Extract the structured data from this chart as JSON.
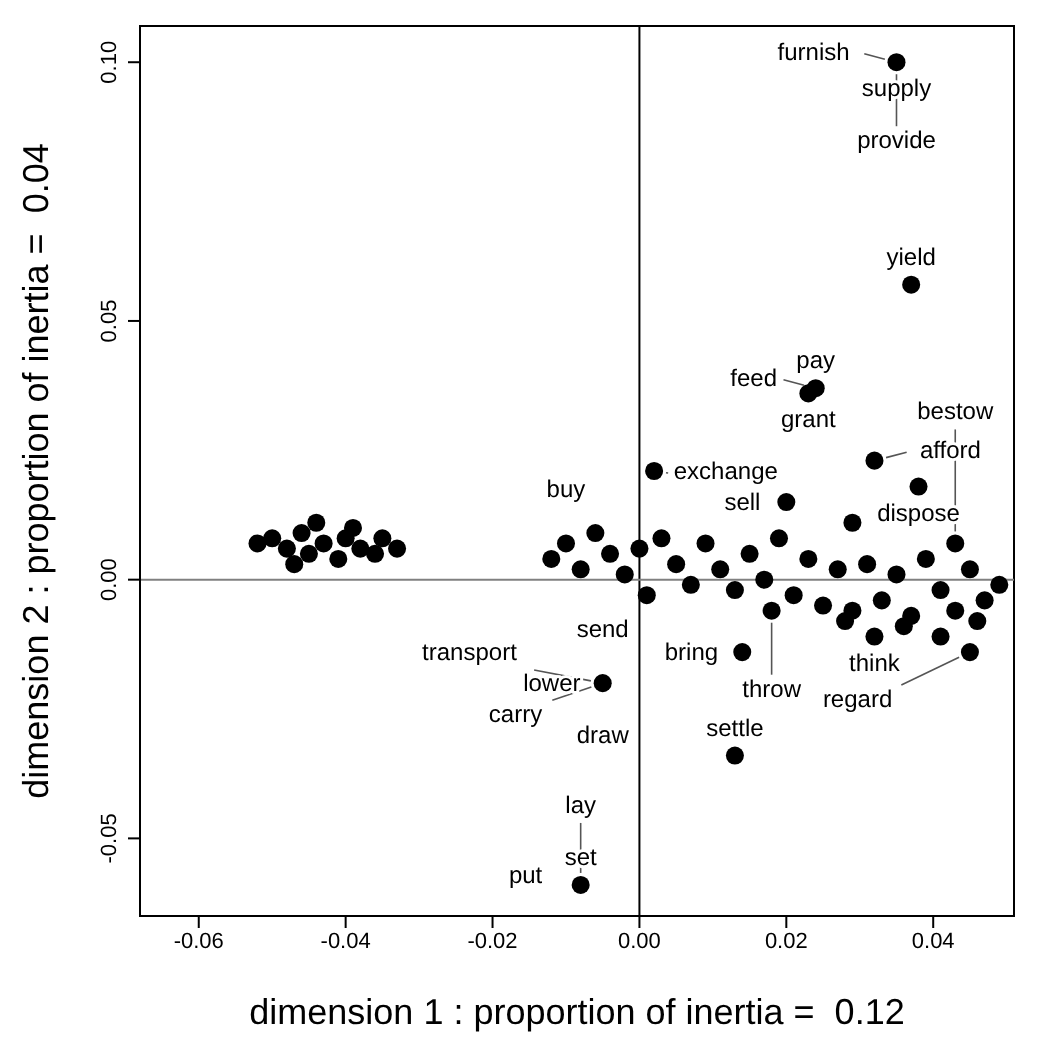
{
  "chart_data": {
    "type": "scatter",
    "xlabel": "dimension 1 : proportion of inertia =  0.12",
    "ylabel": "dimension 2 : proportion of inertia =  0.04",
    "xlim": [
      -0.068,
      0.051
    ],
    "ylim": [
      -0.065,
      0.107
    ],
    "xticks": [
      {
        "value": -0.06,
        "label": "-0.06"
      },
      {
        "value": -0.04,
        "label": "-0.04"
      },
      {
        "value": -0.02,
        "label": "-0.02"
      },
      {
        "value": 0,
        "label": "0.00"
      },
      {
        "value": 0.02,
        "label": "0.02"
      },
      {
        "value": 0.04,
        "label": "0.04"
      }
    ],
    "yticks": [
      {
        "value": -0.05,
        "label": "-0.05"
      },
      {
        "value": 0,
        "label": "0.00"
      },
      {
        "value": 0.05,
        "label": "0.05"
      },
      {
        "value": 0.1,
        "label": "0.10"
      }
    ],
    "grid": false,
    "marker": "circle",
    "ref_lines": [
      {
        "axis": "x",
        "value": 0,
        "color": "#000000"
      },
      {
        "axis": "y",
        "value": 0,
        "color": "#808080"
      }
    ],
    "series": [
      {
        "color": "#000000",
        "x": [
          0.035,
          0.037,
          0.024,
          0.023,
          0.002,
          0.032,
          0.02,
          0.038,
          0.043,
          0.029,
          0.032,
          0.041,
          0.045,
          0.014,
          -0.005,
          0.013,
          -0.008,
          0.018,
          -0.05,
          -0.048,
          -0.046,
          -0.045,
          -0.043,
          -0.041,
          -0.04,
          -0.038,
          -0.036,
          -0.035,
          -0.033,
          -0.044,
          -0.039,
          -0.047,
          -0.052,
          -0.012,
          -0.01,
          -0.008,
          -0.006,
          -0.004,
          -0.002,
          0.0,
          0.001,
          0.003,
          0.005,
          0.007,
          0.009,
          0.011,
          0.013,
          0.015,
          0.017,
          0.019,
          0.021,
          0.023,
          0.025,
          0.027,
          0.029,
          0.031,
          0.033,
          0.035,
          0.037,
          0.039,
          0.041,
          0.043,
          0.045,
          0.047,
          0.049,
          0.028,
          0.036,
          0.046
        ],
        "values": [
          0.1,
          0.057,
          0.037,
          0.036,
          0.021,
          0.023,
          0.015,
          0.018,
          0.007,
          0.011,
          -0.011,
          -0.011,
          -0.014,
          -0.014,
          -0.02,
          -0.034,
          -0.059,
          -0.006,
          0.008,
          0.006,
          0.009,
          0.005,
          0.007,
          0.004,
          0.008,
          0.006,
          0.005,
          0.008,
          0.006,
          0.011,
          0.01,
          0.003,
          0.007,
          0.004,
          0.007,
          0.002,
          0.009,
          0.005,
          0.001,
          0.006,
          -0.003,
          0.008,
          0.003,
          -0.001,
          0.007,
          0.002,
          -0.002,
          0.005,
          0.0,
          0.008,
          -0.003,
          0.004,
          -0.005,
          0.002,
          -0.006,
          0.003,
          -0.004,
          0.001,
          -0.007,
          0.004,
          -0.002,
          -0.006,
          0.002,
          -0.004,
          -0.001,
          -0.008,
          -0.009,
          -0.008
        ]
      }
    ],
    "annotations": [
      {
        "text": "supply",
        "x": 0.035,
        "y": 0.1
      },
      {
        "text": "furnish",
        "x": 0.035,
        "y": 0.1
      },
      {
        "text": "provide",
        "x": 0.035,
        "y": 0.1
      },
      {
        "text": "yield",
        "x": 0.037,
        "y": 0.057
      },
      {
        "text": "pay",
        "x": 0.024,
        "y": 0.037
      },
      {
        "text": "grant",
        "x": 0.023,
        "y": 0.036
      },
      {
        "text": "feed",
        "x": 0.024,
        "y": 0.037
      },
      {
        "text": "exchange",
        "x": 0.002,
        "y": 0.021
      },
      {
        "text": "afford",
        "x": 0.032,
        "y": 0.023
      },
      {
        "text": "sell",
        "x": 0.02,
        "y": 0.015
      },
      {
        "text": "dispose",
        "x": 0.038,
        "y": 0.018
      },
      {
        "text": "bestow",
        "x": 0.043,
        "y": 0.007
      },
      {
        "text": "buy",
        "x": -0.01,
        "y": 0.007
      },
      {
        "text": "throw",
        "x": 0.018,
        "y": -0.006
      },
      {
        "text": "think",
        "x": 0.032,
        "y": -0.011
      },
      {
        "text": "regard",
        "x": 0.045,
        "y": -0.014
      },
      {
        "text": "bring",
        "x": 0.014,
        "y": -0.014
      },
      {
        "text": "lower",
        "x": -0.005,
        "y": -0.02
      },
      {
        "text": "send",
        "x": -0.005,
        "y": -0.02
      },
      {
        "text": "draw",
        "x": -0.005,
        "y": -0.02
      },
      {
        "text": "carry",
        "x": -0.005,
        "y": -0.02
      },
      {
        "text": "transport",
        "x": -0.005,
        "y": -0.02
      },
      {
        "text": "settle",
        "x": 0.013,
        "y": -0.034
      },
      {
        "text": "set",
        "x": -0.008,
        "y": -0.059
      },
      {
        "text": "put",
        "x": -0.008,
        "y": -0.059
      },
      {
        "text": "lay",
        "x": -0.008,
        "y": -0.059
      }
    ]
  }
}
